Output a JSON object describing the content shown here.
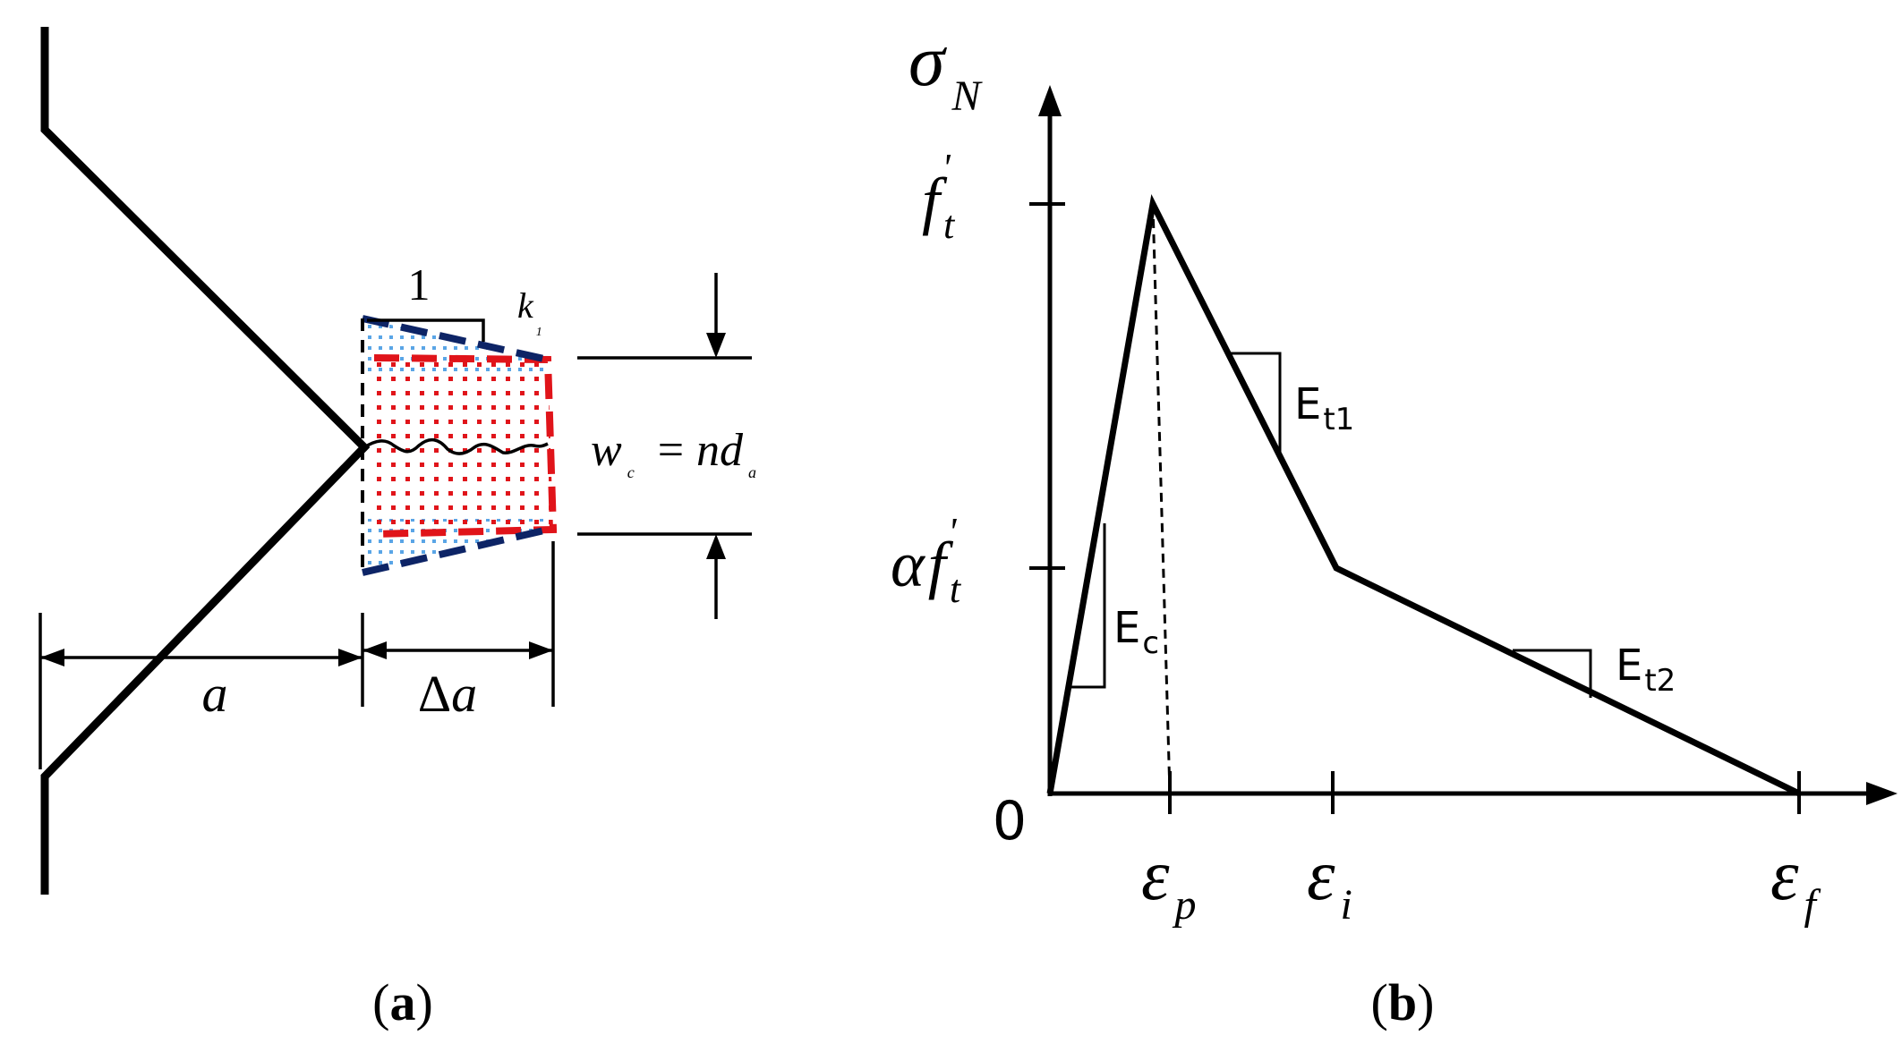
{
  "panel_a": {
    "caption_open": "(",
    "caption_letter": "a",
    "caption_close": ")",
    "slope_run": "1",
    "slope_rise_main": "k",
    "slope_rise_sub": "1",
    "band_width_var": "w",
    "band_width_var_sub": "c",
    "band_width_eq": "=",
    "band_width_rhs": "nd",
    "band_width_rhs_sub": "a",
    "crack_length": "a",
    "increment_delta": "Δ",
    "increment_var": "a",
    "colors": {
      "outline_blue": "#0d2466",
      "band_red": "#e0141a",
      "dot_red": "#e0141a",
      "dot_blue": "#5aa5e6"
    }
  },
  "panel_b": {
    "caption_open": "(",
    "caption_letter": "b",
    "caption_close": ")",
    "y_axis_symbol": "σ",
    "y_axis_sub": "N",
    "tick_ft_main": "f",
    "tick_ft_sub": "t",
    "tick_ft_prime": "'",
    "tick_alpha": "α",
    "tick_alpha_f": "f",
    "tick_alpha_sub": "t",
    "tick_alpha_prime": "'",
    "origin": "0",
    "tick_eps_p": "ε",
    "tick_eps_p_sub": "p",
    "tick_eps_i": "ε",
    "tick_eps_i_sub": "i",
    "tick_eps_f": "ε",
    "tick_eps_f_sub": "f",
    "slope_Ec_main": "E",
    "slope_Ec_sub": "c",
    "slope_Et1_main": "E",
    "slope_Et1_sub": "t1",
    "slope_Et2_main": "E",
    "slope_Et2_sub": "t2"
  }
}
